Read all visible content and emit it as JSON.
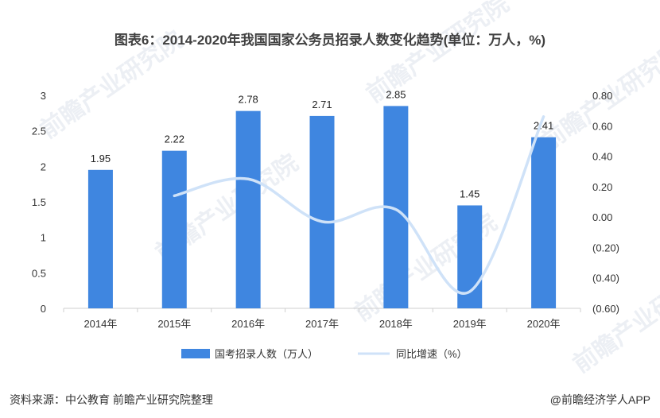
{
  "chart_data": {
    "type": "bar",
    "title": "图表6：2014-2020年我国国家公务员招录人数变化趋势(单位：万人，%)",
    "categories": [
      "2014年",
      "2015年",
      "2016年",
      "2017年",
      "2018年",
      "2019年",
      "2020年"
    ],
    "series": [
      {
        "name": "国考招录人数（万人）",
        "type": "bar",
        "axis": "left",
        "color": "#3f86e0",
        "values": [
          1.95,
          2.22,
          2.78,
          2.71,
          2.85,
          1.45,
          2.41
        ],
        "labels": [
          "1.95",
          "2.22",
          "2.78",
          "2.71",
          "2.85",
          "1.45",
          "2.41"
        ]
      },
      {
        "name": "同比增速（%）",
        "type": "line",
        "axis": "right",
        "smooth": true,
        "color": "#cfe2f8",
        "values": [
          null,
          0.14,
          0.25,
          -0.03,
          0.05,
          -0.49,
          0.66
        ]
      }
    ],
    "left_axis": {
      "ylim": [
        0,
        3
      ],
      "ticks": [
        0,
        0.5,
        1,
        1.5,
        2,
        2.5,
        3
      ],
      "tick_labels": [
        "0",
        "0.5",
        "1",
        "1.5",
        "2",
        "2.5",
        "3"
      ]
    },
    "right_axis": {
      "ylim": [
        -0.6,
        0.8
      ],
      "ticks": [
        0.8,
        0.6,
        0.4,
        0.2,
        0.0,
        -0.2,
        -0.4,
        -0.6
      ],
      "tick_labels": [
        "0.80",
        "0.60",
        "0.40",
        "0.20",
        "0.00",
        "(0.20)",
        "(0.40)",
        "(0.60)"
      ]
    },
    "grid": false,
    "legend_position": "bottom"
  },
  "footer": {
    "source": "资料来源：中公教育 前瞻产业研究院整理",
    "brand": "@前瞻经济学人APP"
  },
  "watermark": {
    "text": "前瞻产业研究院"
  }
}
